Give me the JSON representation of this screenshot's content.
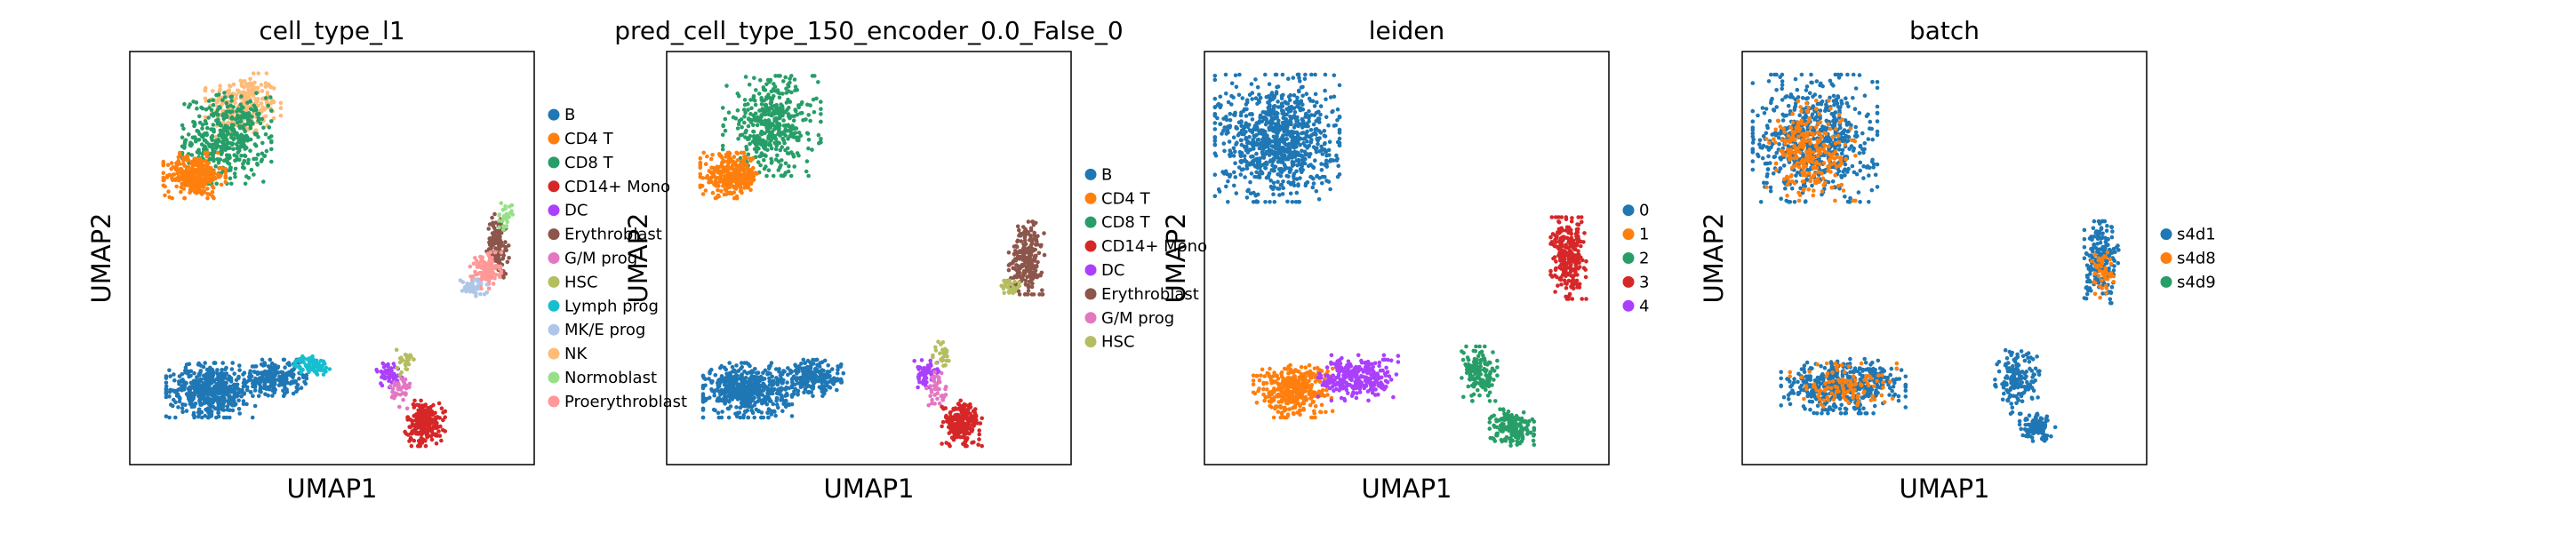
{
  "chart_data": [
    {
      "type": "scatter",
      "title": "cell_type_l1",
      "xlabel": "UMAP1",
      "ylabel": "UMAP2",
      "grid": false,
      "legend_placement": "right",
      "legend": [
        {
          "label": "B",
          "color": "#1f77b4"
        },
        {
          "label": "CD4 T",
          "color": "#ff7f0e"
        },
        {
          "label": "CD8 T",
          "color": "#279e68"
        },
        {
          "label": "CD14+ Mono",
          "color": "#d62728"
        },
        {
          "label": "DC",
          "color": "#aa40fc"
        },
        {
          "label": "Erythroblast",
          "color": "#8c564b"
        },
        {
          "label": "G/M prog",
          "color": "#e377c2"
        },
        {
          "label": "HSC",
          "color": "#b5bd61"
        },
        {
          "label": "Lymph prog",
          "color": "#17becf"
        },
        {
          "label": "MK/E prog",
          "color": "#aec7e8"
        },
        {
          "label": "NK",
          "color": "#ffbb78"
        },
        {
          "label": "Normoblast",
          "color": "#98df8a"
        },
        {
          "label": "Proerythroblast",
          "color": "#ff9896"
        }
      ],
      "clusters": [
        {
          "label": "NK",
          "x": 0.28,
          "y": 0.87,
          "n": 260,
          "rx": 0.085,
          "ry": 0.07
        },
        {
          "label": "CD8 T",
          "x": 0.24,
          "y": 0.79,
          "n": 420,
          "rx": 0.1,
          "ry": 0.1
        },
        {
          "label": "CD4 T",
          "x": 0.16,
          "y": 0.7,
          "n": 300,
          "rx": 0.07,
          "ry": 0.05
        },
        {
          "label": "B",
          "x": 0.2,
          "y": 0.18,
          "n": 520,
          "rx": 0.1,
          "ry": 0.06
        },
        {
          "label": "B",
          "x": 0.36,
          "y": 0.21,
          "n": 220,
          "rx": 0.07,
          "ry": 0.04
        },
        {
          "label": "Lymph prog",
          "x": 0.45,
          "y": 0.24,
          "n": 80,
          "rx": 0.04,
          "ry": 0.02
        },
        {
          "label": "DC",
          "x": 0.64,
          "y": 0.22,
          "n": 50,
          "rx": 0.03,
          "ry": 0.03
        },
        {
          "label": "G/M prog",
          "x": 0.67,
          "y": 0.18,
          "n": 40,
          "rx": 0.025,
          "ry": 0.04
        },
        {
          "label": "HSC",
          "x": 0.68,
          "y": 0.25,
          "n": 30,
          "rx": 0.02,
          "ry": 0.03
        },
        {
          "label": "CD14+ Mono",
          "x": 0.73,
          "y": 0.1,
          "n": 220,
          "rx": 0.045,
          "ry": 0.05
        },
        {
          "label": "Erythroblast",
          "x": 0.91,
          "y": 0.53,
          "n": 140,
          "rx": 0.025,
          "ry": 0.07
        },
        {
          "label": "Proerythroblast",
          "x": 0.88,
          "y": 0.47,
          "n": 120,
          "rx": 0.035,
          "ry": 0.04
        },
        {
          "label": "MK/E prog",
          "x": 0.85,
          "y": 0.43,
          "n": 50,
          "rx": 0.03,
          "ry": 0.02
        },
        {
          "label": "Normoblast",
          "x": 0.93,
          "y": 0.6,
          "n": 30,
          "rx": 0.015,
          "ry": 0.03
        }
      ]
    },
    {
      "type": "scatter",
      "title": "pred_cell_type_150_encoder_0.0_False_0",
      "xlabel": "UMAP1",
      "ylabel": "UMAP2",
      "grid": false,
      "legend_placement": "right",
      "legend": [
        {
          "label": "B",
          "color": "#1f77b4"
        },
        {
          "label": "CD4 T",
          "color": "#ff7f0e"
        },
        {
          "label": "CD8 T",
          "color": "#279e68"
        },
        {
          "label": "CD14+ Mono",
          "color": "#d62728"
        },
        {
          "label": "DC",
          "color": "#aa40fc"
        },
        {
          "label": "Erythroblast",
          "color": "#8c564b"
        },
        {
          "label": "G/M prog",
          "color": "#e377c2"
        },
        {
          "label": "HSC",
          "color": "#b5bd61"
        }
      ],
      "clusters": [
        {
          "label": "CD8 T",
          "x": 0.26,
          "y": 0.82,
          "n": 420,
          "rx": 0.11,
          "ry": 0.11
        },
        {
          "label": "CD4 T",
          "x": 0.16,
          "y": 0.7,
          "n": 300,
          "rx": 0.07,
          "ry": 0.05
        },
        {
          "label": "B",
          "x": 0.2,
          "y": 0.18,
          "n": 520,
          "rx": 0.1,
          "ry": 0.06
        },
        {
          "label": "B",
          "x": 0.36,
          "y": 0.21,
          "n": 200,
          "rx": 0.07,
          "ry": 0.04
        },
        {
          "label": "DC",
          "x": 0.64,
          "y": 0.22,
          "n": 60,
          "rx": 0.03,
          "ry": 0.03
        },
        {
          "label": "G/M prog",
          "x": 0.67,
          "y": 0.18,
          "n": 40,
          "rx": 0.025,
          "ry": 0.04
        },
        {
          "label": "HSC",
          "x": 0.68,
          "y": 0.27,
          "n": 30,
          "rx": 0.02,
          "ry": 0.03
        },
        {
          "label": "CD14+ Mono",
          "x": 0.73,
          "y": 0.1,
          "n": 220,
          "rx": 0.045,
          "ry": 0.05
        },
        {
          "label": "Erythroblast",
          "x": 0.89,
          "y": 0.5,
          "n": 230,
          "rx": 0.04,
          "ry": 0.08
        },
        {
          "label": "HSC",
          "x": 0.85,
          "y": 0.43,
          "n": 30,
          "rx": 0.02,
          "ry": 0.02
        }
      ]
    },
    {
      "type": "scatter",
      "title": "leiden",
      "xlabel": "UMAP1",
      "ylabel": "UMAP2",
      "grid": false,
      "legend_placement": "right",
      "legend": [
        {
          "label": "0",
          "color": "#1f77b4"
        },
        {
          "label": "1",
          "color": "#ff7f0e"
        },
        {
          "label": "2",
          "color": "#279e68"
        },
        {
          "label": "3",
          "color": "#d62728"
        },
        {
          "label": "4",
          "color": "#aa40fc"
        }
      ],
      "clusters": [
        {
          "label": "0",
          "x": 0.18,
          "y": 0.79,
          "n": 900,
          "rx": 0.14,
          "ry": 0.14
        },
        {
          "label": "1",
          "x": 0.22,
          "y": 0.18,
          "n": 380,
          "rx": 0.09,
          "ry": 0.06
        },
        {
          "label": "4",
          "x": 0.38,
          "y": 0.21,
          "n": 280,
          "rx": 0.09,
          "ry": 0.05
        },
        {
          "label": "2",
          "x": 0.68,
          "y": 0.22,
          "n": 140,
          "rx": 0.04,
          "ry": 0.06
        },
        {
          "label": "2",
          "x": 0.76,
          "y": 0.09,
          "n": 170,
          "rx": 0.05,
          "ry": 0.04
        },
        {
          "label": "3",
          "x": 0.9,
          "y": 0.5,
          "n": 260,
          "rx": 0.04,
          "ry": 0.09
        }
      ]
    },
    {
      "type": "scatter",
      "title": "batch",
      "xlabel": "UMAP1",
      "ylabel": "UMAP2",
      "grid": false,
      "legend_placement": "right",
      "legend": [
        {
          "label": "s4d1",
          "color": "#1f77b4"
        },
        {
          "label": "s4d8",
          "color": "#ff7f0e"
        },
        {
          "label": "s4d9",
          "color": "#279e68"
        }
      ],
      "clusters": [
        {
          "label": "s4d1",
          "x": 0.18,
          "y": 0.79,
          "n": 650,
          "rx": 0.14,
          "ry": 0.14
        },
        {
          "label": "s4d8",
          "x": 0.17,
          "y": 0.76,
          "n": 260,
          "rx": 0.1,
          "ry": 0.11
        },
        {
          "label": "s4d1",
          "x": 0.25,
          "y": 0.19,
          "n": 450,
          "rx": 0.14,
          "ry": 0.06
        },
        {
          "label": "s4d8",
          "x": 0.25,
          "y": 0.19,
          "n": 110,
          "rx": 0.12,
          "ry": 0.05
        },
        {
          "label": "s4d1",
          "x": 0.68,
          "y": 0.2,
          "n": 160,
          "rx": 0.05,
          "ry": 0.07
        },
        {
          "label": "s4d1",
          "x": 0.73,
          "y": 0.09,
          "n": 110,
          "rx": 0.04,
          "ry": 0.03
        },
        {
          "label": "s4d1",
          "x": 0.89,
          "y": 0.49,
          "n": 200,
          "rx": 0.04,
          "ry": 0.09
        },
        {
          "label": "s4d8",
          "x": 0.89,
          "y": 0.47,
          "n": 50,
          "rx": 0.03,
          "ry": 0.06
        }
      ]
    }
  ]
}
